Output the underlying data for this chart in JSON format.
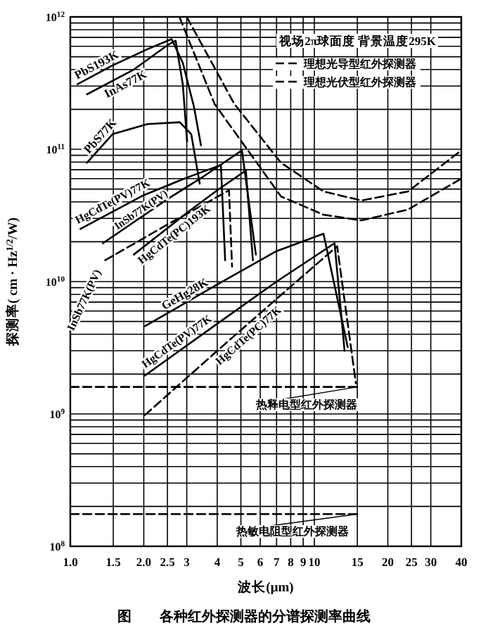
{
  "chart_data": {
    "type": "line",
    "title": "图　　各种红外探测器的分谱探测率曲线",
    "xlabel": "波长(μm)",
    "ylabel": "探测率( cm · Hz$^{1/2}$/W)",
    "log": "xy",
    "grid": true,
    "legend": "top right",
    "annotations": [
      "视场2π球面度  背景温度295K"
    ],
    "xlim": [
      1,
      40
    ],
    "ylim": [
      100000000.0,
      1000000000000.0
    ],
    "xticks": [
      {
        "value": 1,
        "label": "1.0"
      },
      1.5,
      {
        "value": 2,
        "label": "2.0"
      },
      2.5,
      3,
      4,
      5,
      6,
      7,
      8,
      9,
      10,
      15,
      20,
      25,
      30,
      40
    ],
    "yticks": [
      {
        "value": 100000000.0,
        "label": "10$^{8}$"
      },
      {
        "value": 200000000.0,
        "label": null
      },
      {
        "value": 300000000.0,
        "label": null
      },
      {
        "value": 400000000.0,
        "label": null
      },
      {
        "value": 500000000.0,
        "label": null
      },
      {
        "value": 600000000.0,
        "label": null
      },
      {
        "value": 700000000.0,
        "label": null
      },
      {
        "value": 800000000.0,
        "label": null
      },
      {
        "value": 900000000.0,
        "label": null
      },
      {
        "value": 1000000000.0,
        "label": "10$^{9}$"
      },
      {
        "value": 2000000000.0,
        "label": null
      },
      {
        "value": 3000000000.0,
        "label": null
      },
      {
        "value": 4000000000.0,
        "label": null
      },
      {
        "value": 5000000000.0,
        "label": null
      },
      {
        "value": 6000000000.0,
        "label": null
      },
      {
        "value": 7000000000.0,
        "label": null
      },
      {
        "value": 8000000000.0,
        "label": null
      },
      {
        "value": 9000000000.0,
        "label": null
      },
      {
        "value": 10000000000.0,
        "label": "10$^{10}$"
      },
      {
        "value": 20000000000.0,
        "label": null
      },
      {
        "value": 30000000000.0,
        "label": null
      },
      {
        "value": 40000000000.0,
        "label": null
      },
      {
        "value": 50000000000.0,
        "label": null
      },
      {
        "value": 60000000000.0,
        "label": null
      },
      {
        "value": 70000000000.0,
        "label": null
      },
      {
        "value": 80000000000.0,
        "label": null
      },
      {
        "value": 90000000000.0,
        "label": null
      },
      {
        "value": 100000000000.0,
        "label": "10$^{11}$"
      },
      {
        "value": 200000000000.0,
        "label": null
      },
      {
        "value": 300000000000.0,
        "label": null
      },
      {
        "value": 400000000000.0,
        "label": null
      },
      {
        "value": 500000000000.0,
        "label": null
      },
      {
        "value": 600000000000.0,
        "label": null
      },
      {
        "value": 700000000000.0,
        "label": null
      },
      {
        "value": 800000000000.0,
        "label": null
      },
      {
        "value": 900000000000.0,
        "label": null
      },
      {
        "value": 1000000000000.0,
        "label": "10$^{12}$"
      }
    ],
    "series": [
      {
        "name": "PbS193K",
        "color": "#000000",
        "line_style": "solid",
        "x": [
          1.07,
          1.49,
          2.07,
          2.6,
          2.89,
          3.21,
          3.43
        ],
        "values": [
          310000000000.0,
          430000000000.0,
          570000000000.0,
          680000000000.0,
          450000000000.0,
          210000000000.0,
          107000000000.0
        ]
      },
      {
        "name": "InAs77K",
        "color": "#000000",
        "line_style": "solid",
        "x": [
          1.17,
          1.82,
          2.53,
          2.7,
          2.89,
          3.01
        ],
        "values": [
          260000000000.0,
          400000000000.0,
          620000000000.0,
          660000000000.0,
          310000000000.0,
          115000000000.0
        ]
      },
      {
        "name": "PbS77K",
        "color": "#000000",
        "line_style": "solid",
        "x": [
          1.17,
          1.49,
          2.07,
          2.81,
          3.13,
          3.39
        ],
        "values": [
          79000000000.0,
          130000000000.0,
          155000000000.0,
          160000000000.0,
          130000000000.0,
          55000000000.0
        ]
      },
      {
        "name": "HgCdTe(PV)77K",
        "color": "#000000",
        "line_style": "solid",
        "x": [
          1.1,
          2.0,
          3.0,
          4.14,
          4.31
        ],
        "values": [
          25000000000.0,
          45000000000.0,
          61000000000.0,
          76000000000.0,
          14500000000.0
        ]
      },
      {
        "name": "InSb77K(PV)",
        "color": "#000000",
        "line_style": "solid",
        "x": [
          1.36,
          2.5,
          3.5,
          5.05,
          5.76
        ],
        "values": [
          19500000000.0,
          42000000000.0,
          62000000000.0,
          98000000000.0,
          16000000000.0
        ]
      },
      {
        "name": "InSb77K(PV)",
        "color": "#000000",
        "line_style": "dashed",
        "x": [
          1.39,
          2.5,
          3.5,
          4.47,
          4.6
        ],
        "values": [
          14500000000.0,
          27000000000.0,
          38000000000.0,
          49000000000.0,
          13000000000.0
        ]
      },
      {
        "name": "HgCdTe(PC)193K",
        "color": "#000000",
        "line_style": "solid",
        "x": [
          1.82,
          3.0,
          4.0,
          5.24,
          5.6
        ],
        "values": [
          16000000000.0,
          33000000000.0,
          49000000000.0,
          69000000000.0,
          14500000000.0
        ]
      },
      {
        "name": "GeHg28K",
        "color": "#000000",
        "line_style": "solid",
        "x": [
          2.02,
          4,
          7,
          10.9,
          13.7
        ],
        "values": [
          4600000000.0,
          9500000000.0,
          17000000000.0,
          23000000000.0,
          3200000000.0
        ]
      },
      {
        "name": "HgCdTe(PV)77K",
        "color": "#000000",
        "line_style": "solid",
        "x": [
          2.02,
          4,
          7,
          12.1,
          13.3
        ],
        "values": [
          1950000000.0,
          4800000000.0,
          10000000000.0,
          19500000000.0,
          3000000000.0
        ]
      },
      {
        "name": "HgCdTe(PC)77K",
        "color": "#000000",
        "line_style": "dashed",
        "x": [
          2.02,
          4,
          7,
          12.4,
          14.8
        ],
        "values": [
          980000000.0,
          3000000000.0,
          7400000000.0,
          18500000000.0,
          1700000000.0
        ]
      },
      {
        "name": "理想光导型红外探测器",
        "color": "#000000",
        "line_style": "dashed",
        "x": [
          2.8,
          3.9,
          7.3,
          10.9,
          15.6,
          24.2,
          40
        ],
        "values": [
          1000000000000.0,
          220000000000.0,
          44000000000.0,
          32000000000.0,
          29000000000.0,
          35000000000.0,
          60000000000.0
        ]
      },
      {
        "name": "理想光伏型红外探测器",
        "color": "#000000",
        "line_style": "dashed",
        "x": [
          3.0,
          4.7,
          7.3,
          10.9,
          15.6,
          24.2,
          40
        ],
        "values": [
          1000000000000.0,
          220000000000.0,
          79000000000.0,
          48000000000.0,
          41000000000.0,
          48000000000.0,
          98000000000.0
        ]
      },
      {
        "name": "热释电型红外探测器",
        "color": "#000000",
        "line_style": "dashed",
        "x": [
          1,
          15
        ],
        "values": [
          1600000000.0,
          1600000000.0
        ]
      },
      {
        "name": "热敏电阻型红外探测器",
        "color": "#000000",
        "line_style": "dashed",
        "x": [
          1,
          15
        ],
        "values": [
          175000000.0,
          175000000.0
        ]
      }
    ]
  }
}
